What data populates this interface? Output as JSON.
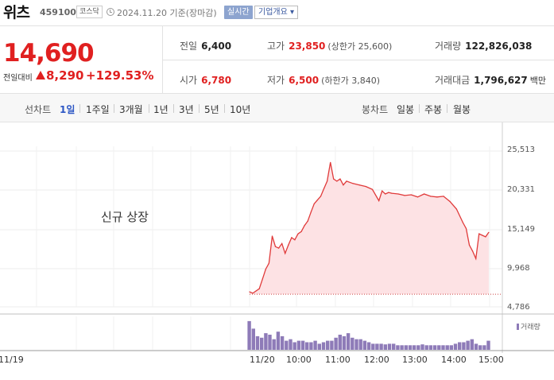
{
  "header": {
    "name": "위츠",
    "code": "459100",
    "market": "코스닥",
    "date": "2024.11.20",
    "basis": "기준(장마감)",
    "realtime_label": "실시간",
    "overview_label": "기업개요 ▾"
  },
  "quote": {
    "price": "14,690",
    "change_label": "전일대비",
    "change": "8,290",
    "change_rate": "+129.53%",
    "prev_close_label": "전일",
    "prev_close": "6,400",
    "high_label": "고가",
    "high": "23,850",
    "upper_limit_label": "(상한가",
    "upper_limit": "25,600)",
    "volume_label": "거래량",
    "volume": "122,826,038",
    "open_label": "시가",
    "open": "6,780",
    "low_label": "저가",
    "low": "6,500",
    "lower_limit_label": "(하한가",
    "lower_limit": "3,840)",
    "amount_label": "거래대금",
    "amount": "1,796,627",
    "amount_unit": "백만",
    "up_color": "#e02020"
  },
  "tabs": {
    "line_label": "선차트",
    "line_tabs": [
      "1일",
      "1주일",
      "3개월",
      "1년",
      "3년",
      "5년",
      "10년"
    ],
    "active_line_tab": "1일",
    "candle_label": "봉차트",
    "candle_tabs": [
      "일봉",
      "주봉",
      "월봉"
    ]
  },
  "chart": {
    "new_listing_text": "신규 상장",
    "volume_legend": "거래량",
    "line_color": "#e03a3a",
    "fill_color": "#fde2e4",
    "volume_color": "#8e7bb8"
  },
  "chart_data": {
    "type": "line",
    "title": "",
    "yticks": [
      "25,513",
      "20,331",
      "15,149",
      "9,968",
      "4,786"
    ],
    "ylim": [
      4786,
      25513
    ],
    "xticks": [
      "11/19",
      "11/20",
      "10:00",
      "11:00",
      "12:00",
      "13:00",
      "14:00",
      "15:00"
    ],
    "grid": true,
    "series": [
      {
        "x": [
          "09:00",
          "09:05",
          "09:10",
          "09:15",
          "09:20",
          "09:25",
          "09:30",
          "09:35",
          "09:40",
          "09:45",
          "09:50",
          "09:55",
          "10:00",
          "10:05",
          "10:10",
          "10:15",
          "10:20",
          "10:25",
          "10:30",
          "10:35",
          "10:40",
          "10:45",
          "10:50",
          "10:55",
          "11:00",
          "11:05",
          "11:10",
          "11:15",
          "11:20",
          "11:25",
          "11:30",
          "11:40",
          "11:50",
          "12:00",
          "12:10",
          "12:20",
          "12:25",
          "12:30",
          "12:35",
          "12:40",
          "12:50",
          "13:00",
          "13:10",
          "13:20",
          "13:30",
          "13:40",
          "13:50",
          "14:00",
          "14:10",
          "14:20",
          "14:30",
          "14:35",
          "14:40",
          "14:45",
          "14:50",
          "14:55",
          "15:00",
          "15:05",
          "15:10"
        ],
        "values": [
          6780,
          6600,
          6900,
          7200,
          8500,
          9800,
          10600,
          14200,
          12800,
          12600,
          13200,
          11900,
          13000,
          14000,
          13700,
          14500,
          14800,
          15600,
          16200,
          17400,
          18500,
          19000,
          19500,
          20500,
          21500,
          24000,
          21800,
          21500,
          21800,
          21000,
          21500,
          21200,
          21000,
          20800,
          20400,
          18900,
          20200,
          19800,
          20000,
          19900,
          19800,
          19600,
          19700,
          19400,
          19800,
          19500,
          19400,
          19500,
          18800,
          17800,
          16000,
          15200,
          13000,
          12200,
          11200,
          14500,
          14300,
          14100,
          14690
        ]
      }
    ],
    "volume": {
      "name": "거래량",
      "relative_values": [
        0.95,
        0.7,
        0.45,
        0.4,
        0.55,
        0.5,
        0.35,
        0.6,
        0.45,
        0.3,
        0.35,
        0.25,
        0.3,
        0.3,
        0.25,
        0.25,
        0.3,
        0.2,
        0.25,
        0.3,
        0.3,
        0.4,
        0.5,
        0.45,
        0.55,
        0.4,
        0.35,
        0.35,
        0.3,
        0.25,
        0.2,
        0.2,
        0.2,
        0.18,
        0.2,
        0.2,
        0.15,
        0.15,
        0.15,
        0.15,
        0.15,
        0.15,
        0.18,
        0.15,
        0.15,
        0.15,
        0.15,
        0.15,
        0.15,
        0.15,
        0.2,
        0.25,
        0.25,
        0.3,
        0.35,
        0.2,
        0.15,
        0.15,
        0.3
      ]
    }
  }
}
